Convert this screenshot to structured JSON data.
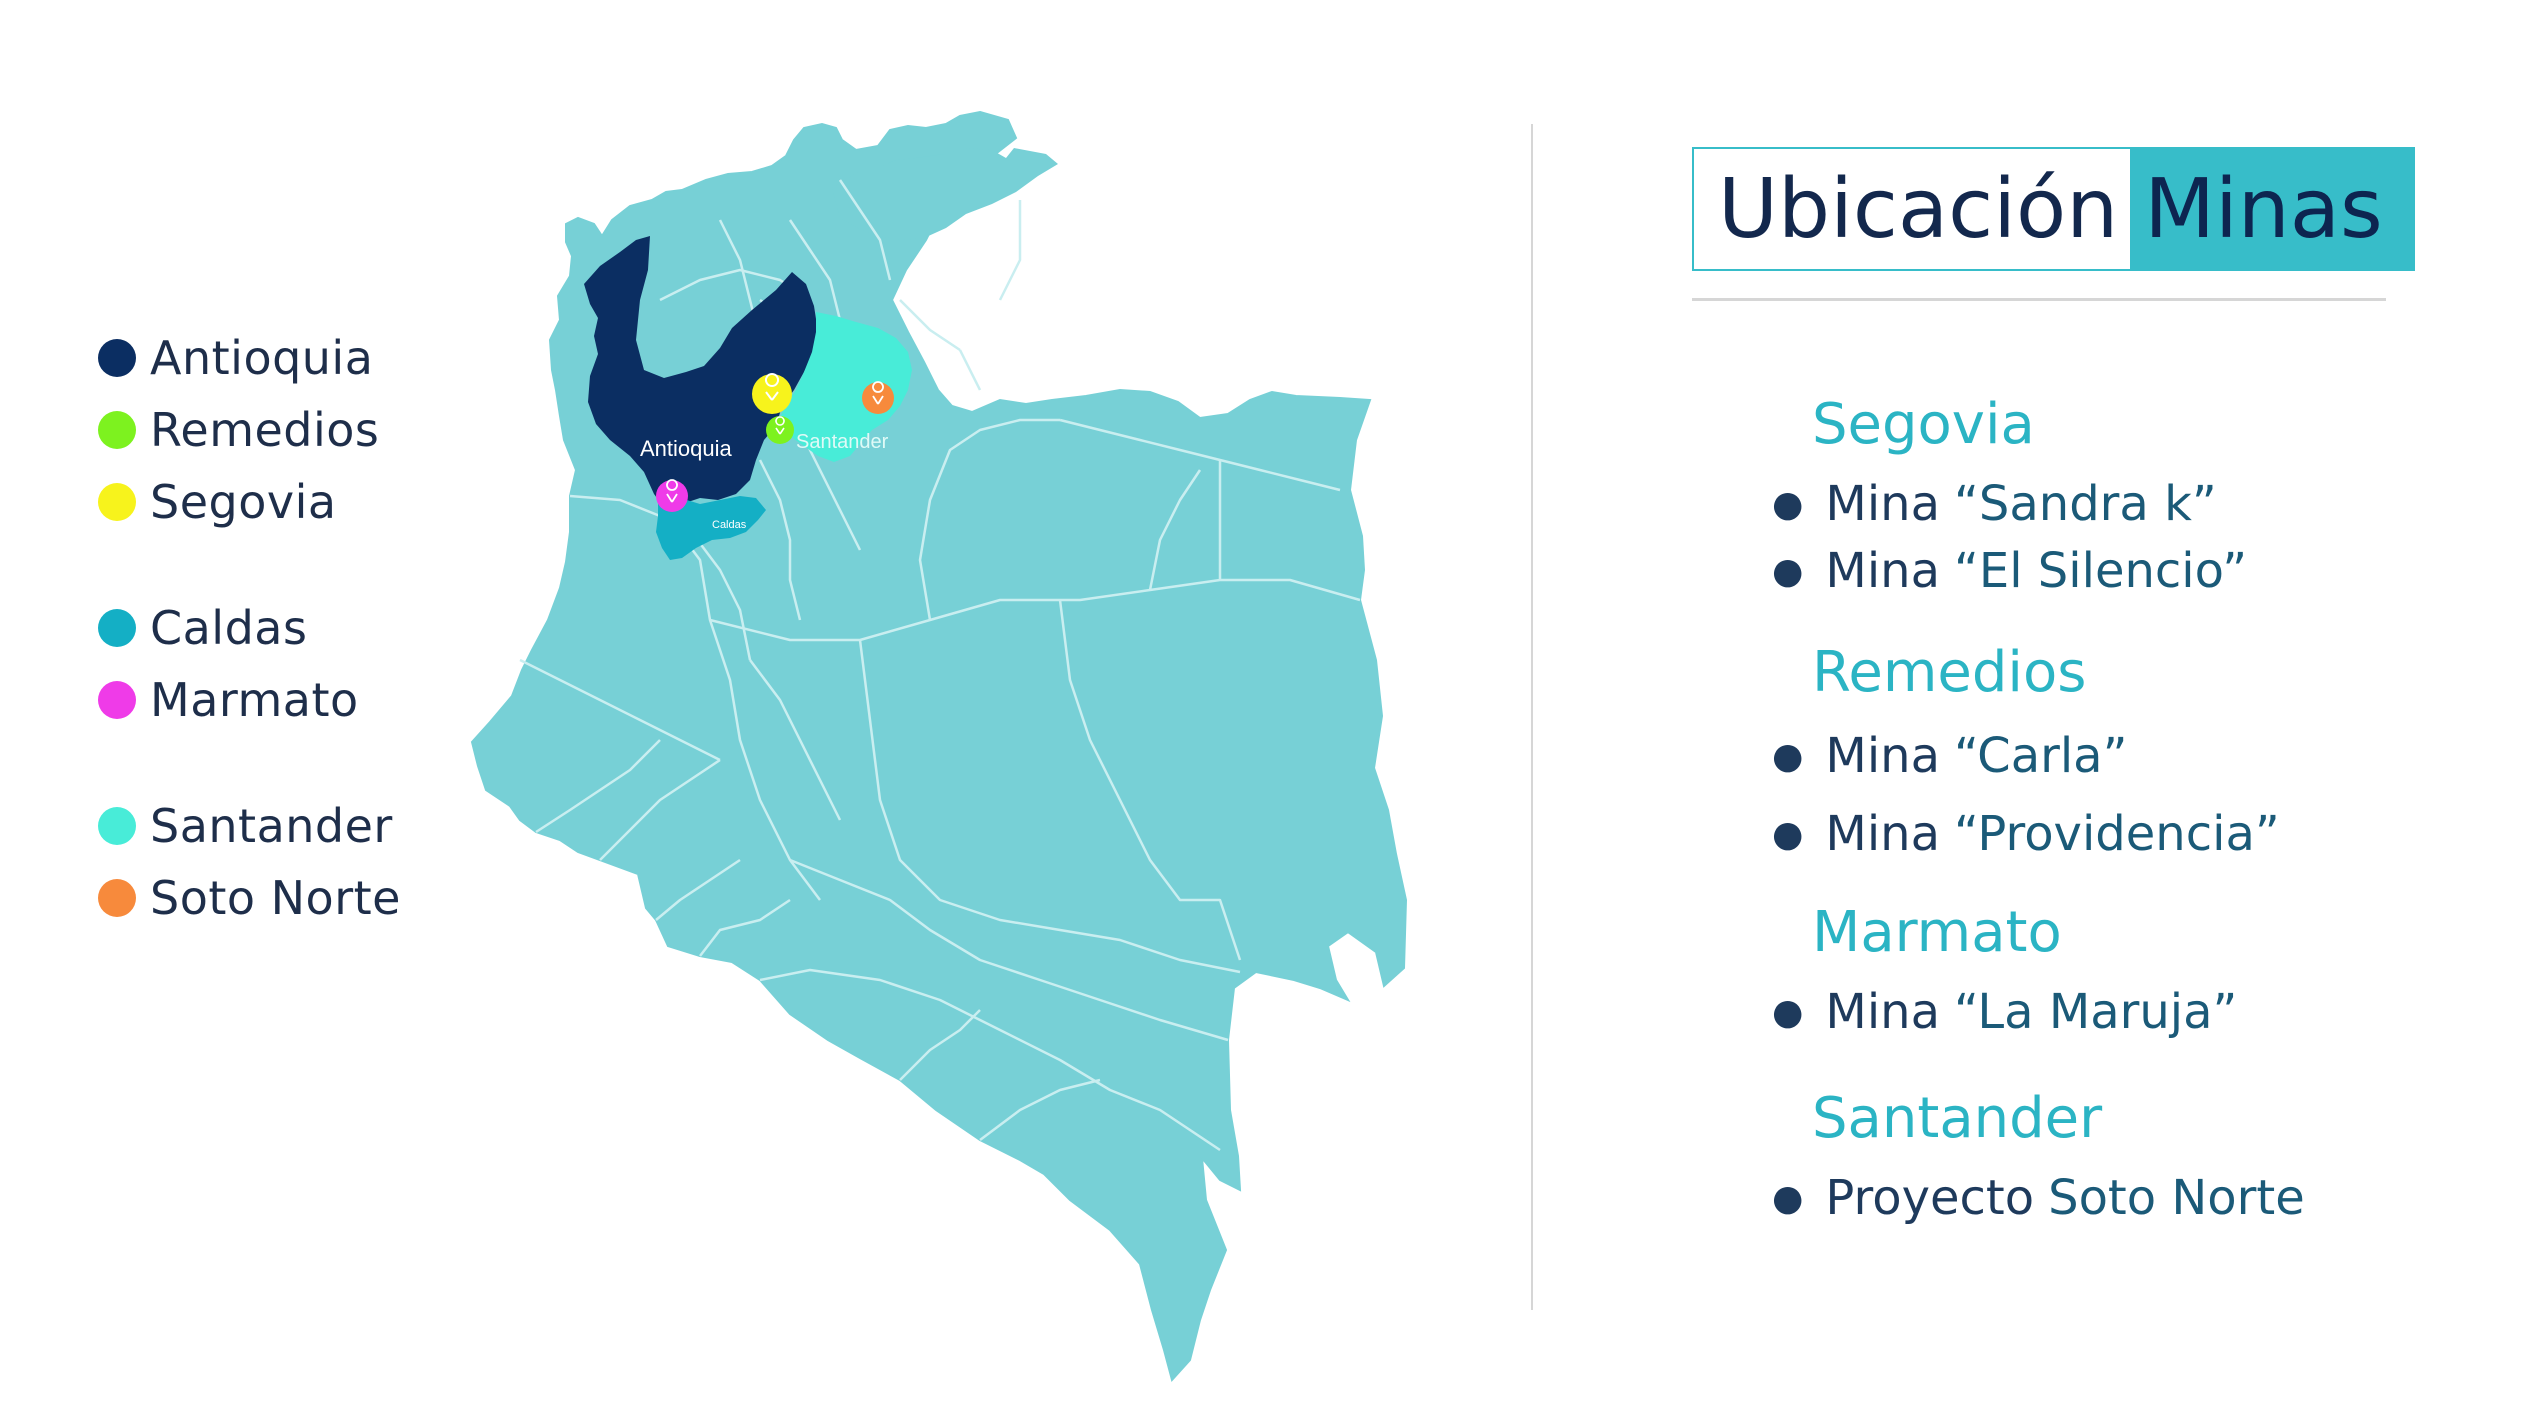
{
  "legend": {
    "items": [
      {
        "label": "Antioquia",
        "color": "#0b2e62"
      },
      {
        "label": "Remedios",
        "color": "#7df21f"
      },
      {
        "label": "Segovia",
        "color": "#f7f31c"
      },
      {
        "label": "Caldas",
        "color": "#14afc5"
      },
      {
        "label": "Marmato",
        "color": "#ef3be8"
      },
      {
        "label": "Santander",
        "color": "#48ecd8"
      },
      {
        "label": "Soto Norte",
        "color": "#f78a3c"
      }
    ]
  },
  "map": {
    "base_color": "#77d0d6",
    "border_color": "#c9eef0",
    "labels": {
      "antioquia": "Antioquia",
      "santander": "Santander",
      "caldas": "Caldas"
    }
  },
  "title": {
    "part1": "Ubicación",
    "part2": "Minas",
    "accent": "#37bdc9"
  },
  "mines": {
    "groups": [
      {
        "title": "Segovia",
        "items": [
          {
            "prefix": "Mina",
            "name": "“Sandra k”"
          },
          {
            "prefix": "Mina",
            "name": "“El Silencio”"
          }
        ]
      },
      {
        "title": "Remedios",
        "items": [
          {
            "prefix": "Mina",
            "name": "“Carla”"
          },
          {
            "prefix": "Mina",
            "name": "“Providencia”"
          }
        ]
      },
      {
        "title": "Marmato",
        "items": [
          {
            "prefix": "Mina",
            "name": "“La Maruja”"
          }
        ]
      },
      {
        "title": "Santander",
        "items": [
          {
            "prefix": "Proyecto",
            "name": "Soto Norte"
          }
        ]
      }
    ]
  }
}
